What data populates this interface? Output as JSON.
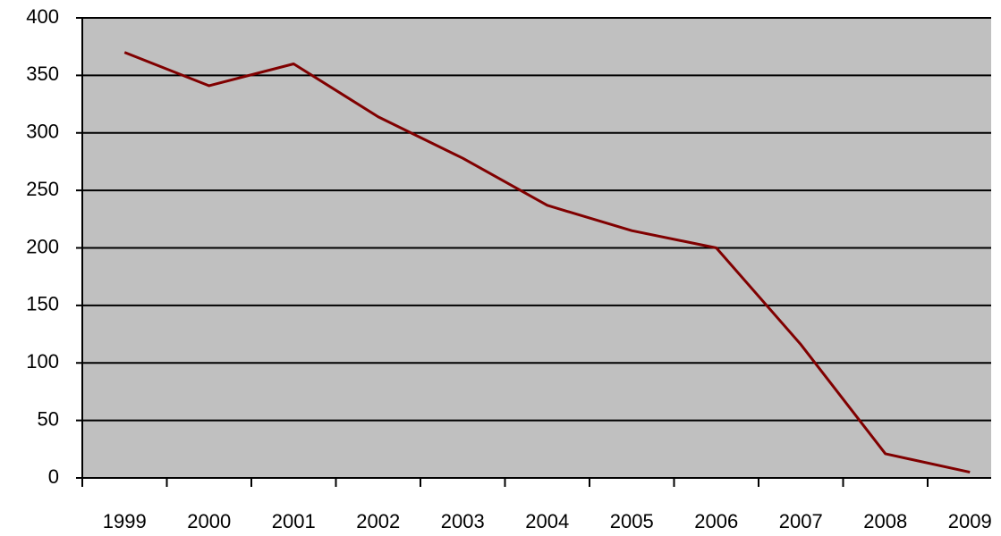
{
  "chart_data": {
    "type": "line",
    "categories": [
      "1999",
      "2000",
      "2001",
      "2002",
      "2003",
      "2004",
      "2005",
      "2006",
      "2007",
      "2008",
      "2009"
    ],
    "values": [
      370,
      341,
      360,
      314,
      278,
      237,
      215,
      200,
      116,
      21,
      5
    ],
    "color": "#800000",
    "background": "#c0c0c0",
    "ylim": [
      0,
      400
    ],
    "yticks": [
      0,
      50,
      100,
      150,
      200,
      250,
      300,
      350,
      400
    ],
    "grid": true
  }
}
